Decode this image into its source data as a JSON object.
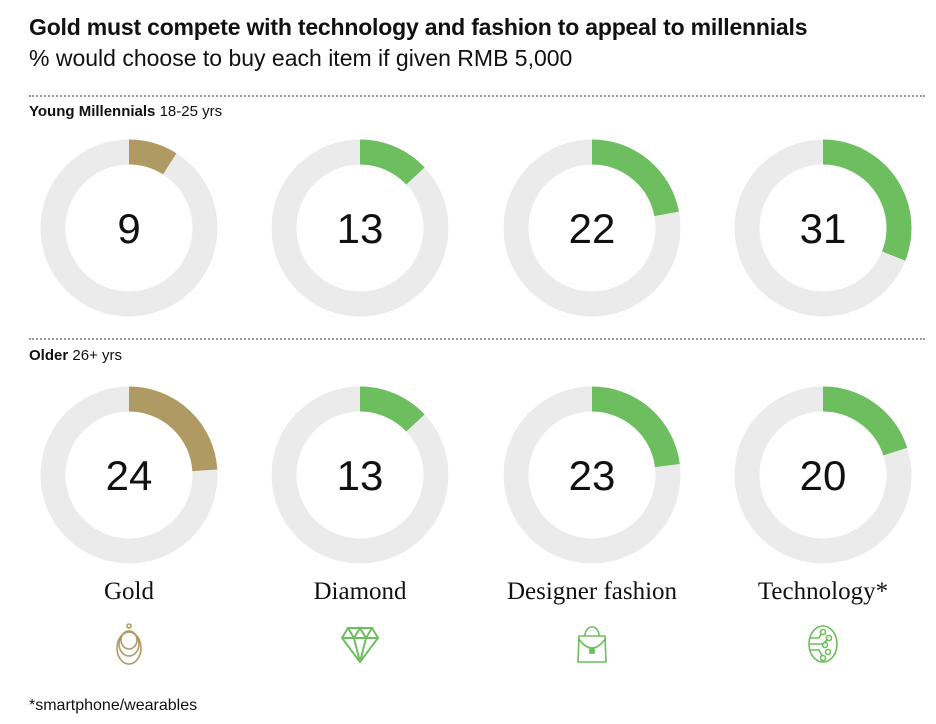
{
  "title": "Gold must compete with technology and fashion to appeal to millennials",
  "subtitle": "% would choose to buy each item if given RMB 5,000",
  "footnote": "*smartphone/wearables",
  "colors": {
    "gold": "#B09A64",
    "green": "#6DBE5E",
    "track": "#EBEBEB"
  },
  "chart_data": {
    "type": "donut",
    "categories": [
      "Gold",
      "Diamond",
      "Designer fashion",
      "Technology*"
    ],
    "icons": [
      "gold-necklace-icon",
      "diamond-icon",
      "handbag-icon",
      "circuit-icon"
    ],
    "max": 100,
    "series": [
      {
        "name": "Young Millennials",
        "detail": "18-25 yrs",
        "values": [
          9,
          13,
          22,
          31
        ]
      },
      {
        "name": "Older",
        "detail": "26+ yrs",
        "values": [
          24,
          13,
          23,
          20
        ]
      }
    ]
  }
}
